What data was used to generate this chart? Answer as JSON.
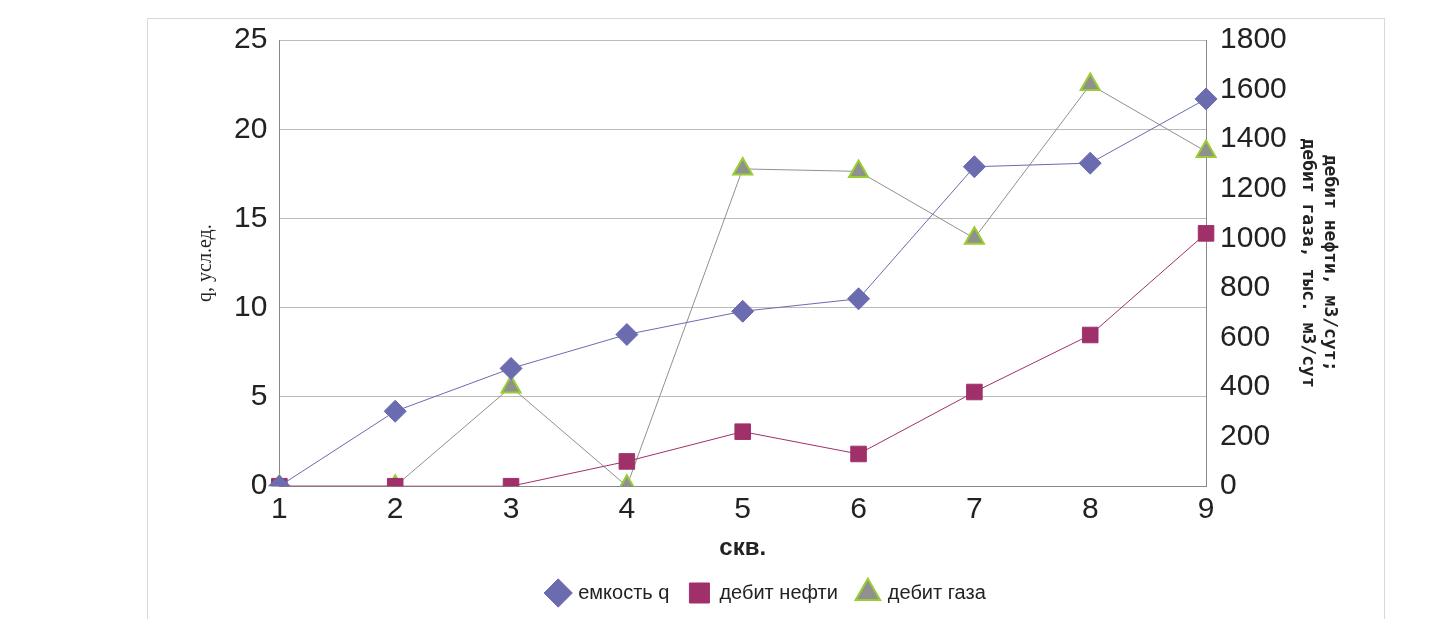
{
  "chart_data": {
    "type": "line",
    "xlabel": "скв.",
    "ylabel": "q, усл.ед.",
    "y2label": "дебит нефти, м3/сут;\nдебит газа, тыс. м3/сут",
    "categories": [
      "1",
      "2",
      "3",
      "4",
      "5",
      "6",
      "7",
      "8",
      "9"
    ],
    "series": [
      {
        "name": "емкость q",
        "color": "#6b6bb0",
        "marker": "diamond",
        "values": [
          0,
          4.2,
          6.6,
          8.5,
          9.8,
          10.5,
          17.9,
          18.1,
          21.7
        ]
      },
      {
        "name": "дебит нефти",
        "color": "#a0306a",
        "marker": "square",
        "axis": "y2",
        "values": [
          0,
          0,
          0,
          100,
          220,
          130,
          380,
          610,
          1020
        ]
      },
      {
        "name": "дебит газа",
        "color": "#909090",
        "marker": "triangle",
        "axis": "y2",
        "values": [
          0,
          0,
          400,
          0,
          1280,
          1270,
          1000,
          1620,
          1350
        ]
      }
    ],
    "ylim": [
      0,
      25
    ],
    "yticks": [
      0,
      5,
      10,
      15,
      20,
      25
    ],
    "y2lim": [
      0,
      1800
    ],
    "y2ticks": [
      0,
      200,
      400,
      600,
      800,
      1000,
      1200,
      1400,
      1600,
      1800
    ],
    "grid": "y",
    "legend": "bottom"
  }
}
